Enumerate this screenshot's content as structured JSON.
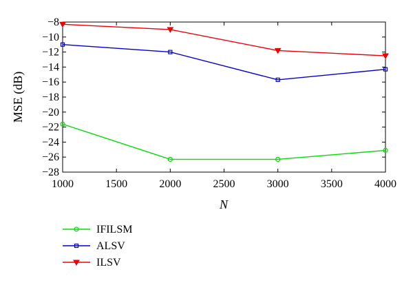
{
  "chart_data": {
    "type": "line",
    "title": "",
    "xlabel": "N",
    "ylabel": "MSE (dB)",
    "xlim": [
      1000,
      4000
    ],
    "ylim": [
      -28,
      -8
    ],
    "xticks": [
      1000,
      1500,
      2000,
      2500,
      3000,
      3500,
      4000
    ],
    "yticks": [
      -8,
      -10,
      -12,
      -14,
      -16,
      -18,
      -20,
      -22,
      -24,
      -26,
      -28
    ],
    "xtick_labels": [
      "1000",
      "1500",
      "2000",
      "2500",
      "3000",
      "3500",
      "4000"
    ],
    "ytick_labels": [
      "−8",
      "−10",
      "−12",
      "−14",
      "−16",
      "−18",
      "−20",
      "−22",
      "−24",
      "−26",
      "−28"
    ],
    "grid": false,
    "legend_position": "bottom-left, below plot",
    "x": [
      1000,
      2000,
      3000,
      4000
    ],
    "series": [
      {
        "name": "IFILSM",
        "color": "#00e000",
        "marker": "circle",
        "values": [
          -21.6,
          -26.3,
          -26.3,
          -25.1
        ]
      },
      {
        "name": "ALSV",
        "color": "#0000cc",
        "marker": "square",
        "values": [
          -11.0,
          -12.0,
          -15.7,
          -14.3
        ]
      },
      {
        "name": "ILSV",
        "color": "#ee0000",
        "marker": "triangle-down",
        "values": [
          -8.3,
          -9.0,
          -11.8,
          -12.5
        ]
      }
    ]
  }
}
